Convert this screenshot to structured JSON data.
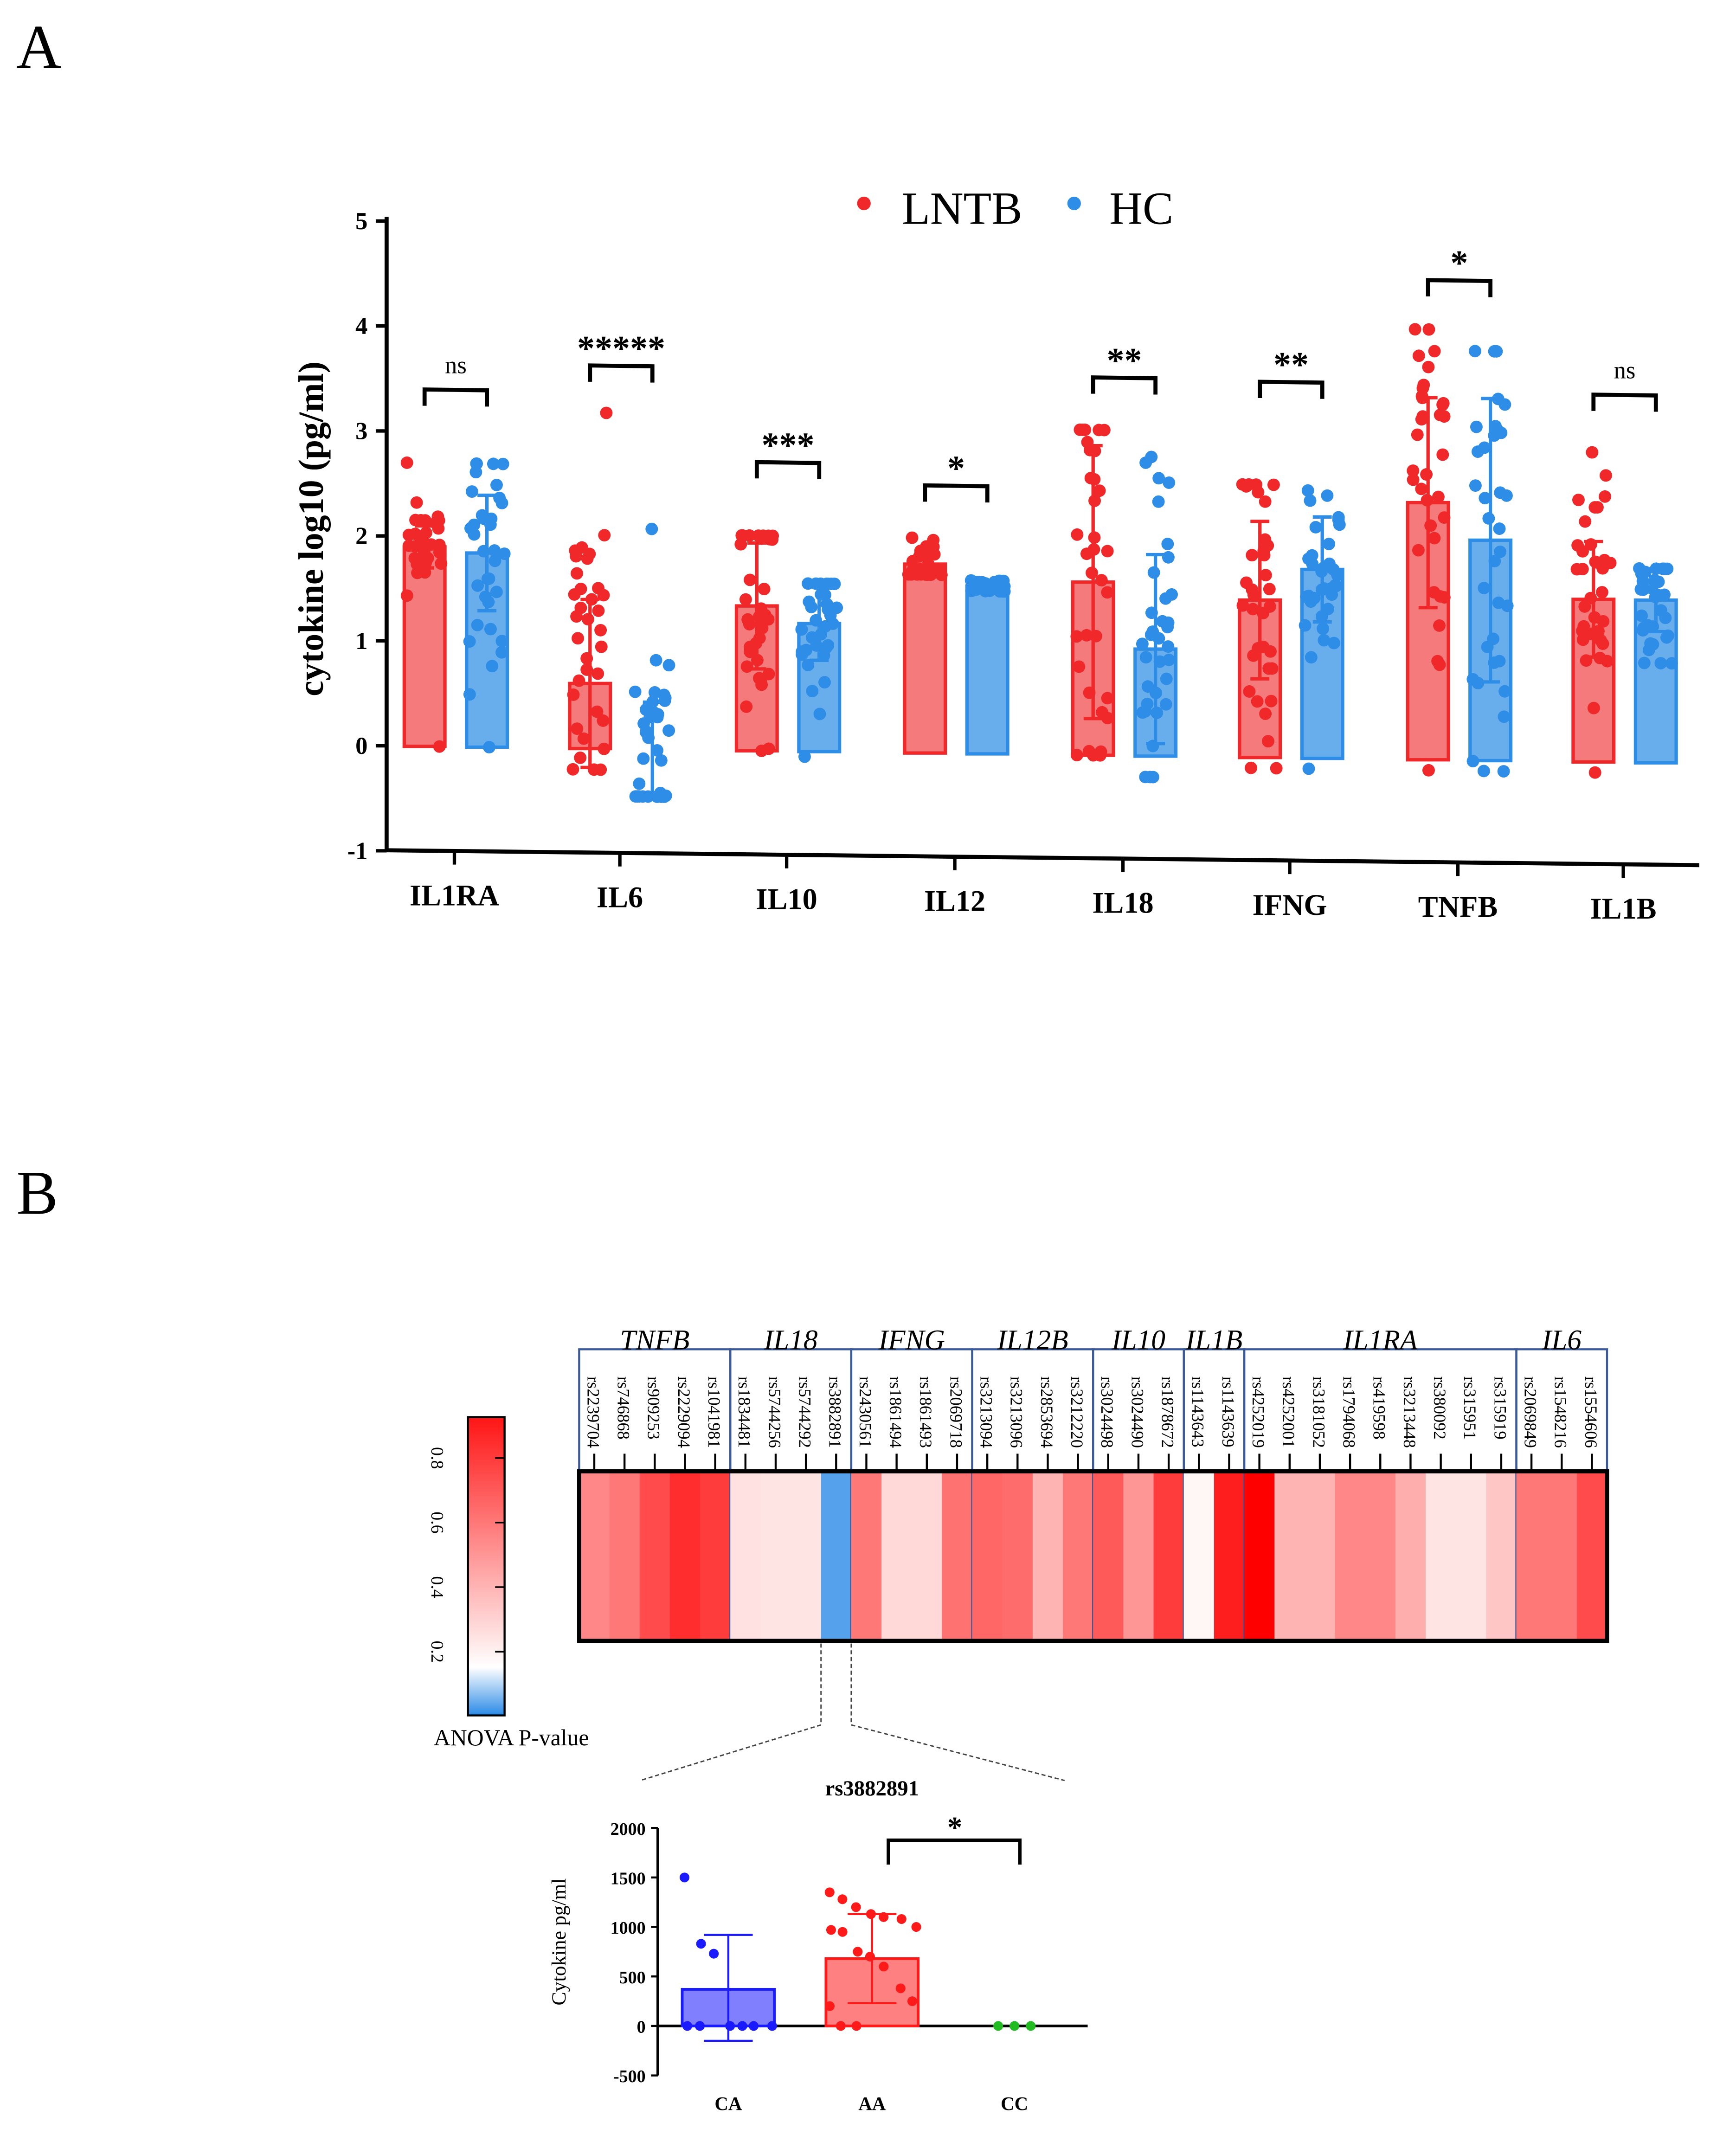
{
  "panel_labels": {
    "a": "A",
    "b": "B"
  },
  "chart_data": [
    {
      "type": "bar",
      "panel": "A",
      "title": "",
      "xlabel": "",
      "ylabel": "cytokine log10 (pg/ml)",
      "ylim": [
        -1,
        5
      ],
      "yticks": [
        "-1",
        "0",
        "1",
        "2",
        "3",
        "4",
        "5"
      ],
      "legend": {
        "placement": "top",
        "entries": [
          "LNTB",
          "HC"
        ]
      },
      "colors": {
        "LNTB": "#f0282a",
        "HC": "#2e8de6",
        "LNTB_bar": "#f47a7c",
        "HC_bar": "#68aeec"
      },
      "categories": [
        "IL1RA",
        "IL6",
        "IL10",
        "IL12",
        "IL18",
        "IFNG",
        "TNFB",
        "IL1B"
      ],
      "series": [
        {
          "name": "LNTB",
          "values": [
            1.9,
            0.62,
            1.38,
            1.8,
            1.65,
            1.5,
            2.45,
            1.55
          ],
          "sd": [
            0.2,
            0.8,
            0.6,
            0.1,
            1.3,
            0.75,
            1.0,
            0.55
          ],
          "min": [
            0,
            -0.2,
            0,
            1.7,
            0,
            -0.1,
            -0.1,
            -0.1
          ],
          "max": [
            2.7,
            3.2,
            2.05,
            2.05,
            3.1,
            2.6,
            4.1,
            2.95
          ]
        },
        {
          "name": "HC",
          "values": [
            1.85,
            0.0,
            1.22,
            1.6,
            1.02,
            1.8,
            2.1,
            1.55
          ],
          "sd": [
            0.55,
            0.45,
            0.35,
            0.05,
            0.9,
            0.5,
            1.35,
            0.3
          ],
          "min": [
            0,
            -0.45,
            -0.05,
            1.55,
            -0.2,
            -0.1,
            -0.1,
            0.95
          ],
          "max": [
            2.7,
            2.1,
            1.6,
            1.65,
            2.85,
            2.55,
            3.9,
            1.85
          ]
        }
      ],
      "significance": [
        "ns",
        "*****",
        "***",
        "*",
        "**",
        "**",
        "*",
        "ns"
      ],
      "bracket_level": [
        3.4,
        3.65,
        2.75,
        2.55,
        3.6,
        3.58,
        4.57,
        3.5
      ]
    },
    {
      "type": "heatmap",
      "panel": "B",
      "colorbar_label": "ANOVA P-value",
      "colorbar_ticks": [
        "0.2",
        "0.4",
        "0.6",
        "0.8"
      ],
      "colorbar_range": [
        0,
        0.93
      ],
      "groups": [
        {
          "gene": "TNFB",
          "snps": [
            "rs2239704",
            "rs746868",
            "rs909253",
            "rs2229094",
            "rs1041981"
          ],
          "p": [
            0.55,
            0.6,
            0.75,
            0.85,
            0.8
          ]
        },
        {
          "gene": "IL18",
          "snps": [
            "rs1834481",
            "rs5744256",
            "rs5744292",
            "rs3882891"
          ],
          "p": [
            0.25,
            0.24,
            0.24,
            0.03
          ]
        },
        {
          "gene": "IFNG",
          "snps": [
            "rs2430561",
            "rs1861494",
            "rs1861493",
            "rs2069718"
          ],
          "p": [
            0.6,
            0.28,
            0.28,
            0.62
          ]
        },
        {
          "gene": "IL12B",
          "snps": [
            "rs3213094",
            "rs3213096",
            "rs2853694",
            "rs3212220"
          ],
          "p": [
            0.66,
            0.64,
            0.4,
            0.6
          ]
        },
        {
          "gene": "IL10",
          "snps": [
            "rs3024498",
            "rs3024490",
            "rs1878672"
          ],
          "p": [
            0.7,
            0.5,
            0.8
          ]
        },
        {
          "gene": "IL1B",
          "snps": [
            "rs1143643",
            "rs1143639"
          ],
          "p": [
            0.18,
            0.9
          ]
        },
        {
          "gene": "IL1RA",
          "snps": [
            "rs4252019",
            "rs4252001",
            "rs3181052",
            "rs1794068",
            "rs419598",
            "rs3213448",
            "rs380092",
            "rs315951",
            "rs315919"
          ],
          "p": [
            1.0,
            0.4,
            0.4,
            0.55,
            0.55,
            0.42,
            0.24,
            0.24,
            0.34
          ]
        },
        {
          "gene": "IL6",
          "snps": [
            "rs2069849",
            "rs1548216",
            "rs1554606"
          ],
          "p": [
            0.6,
            0.6,
            0.75
          ]
        }
      ]
    },
    {
      "type": "bar",
      "panel": "B-inset",
      "title": "rs3882891",
      "xlabel": "",
      "ylabel": "Cytokine pg/ml",
      "ylim": [
        -500,
        2000
      ],
      "yticks": [
        "-500",
        "0",
        "500",
        "1000",
        "1500",
        "2000"
      ],
      "categories": [
        "CA",
        "AA",
        "CC"
      ],
      "values": [
        370,
        680,
        0
      ],
      "error_high": [
        920,
        1130,
        0
      ],
      "error_low": [
        -150,
        230,
        0
      ],
      "colors": [
        "#1a1aff",
        "#ff1a1a",
        "#22bb22"
      ],
      "bar_fills": [
        "#8080ff",
        "#ff8080",
        "#22bb22"
      ],
      "points": [
        [
          1500,
          830,
          730,
          0,
          0,
          0,
          0,
          0,
          0
        ],
        [
          1350,
          1280,
          1200,
          1130,
          1100,
          1080,
          1000,
          970,
          950,
          750,
          700,
          600,
          380,
          250,
          200,
          0,
          0
        ],
        [
          0,
          0,
          0
        ]
      ],
      "significance": {
        "between": [
          "AA",
          "CC"
        ],
        "label": "*"
      }
    }
  ]
}
